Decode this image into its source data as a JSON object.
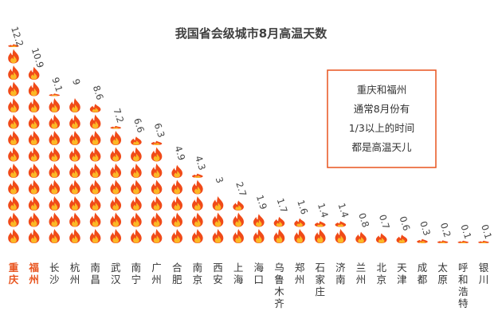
{
  "chart_data": {
    "type": "bar",
    "title": "我国省会级城市8月高温天数",
    "categories": [
      "重庆",
      "福州",
      "长沙",
      "杭州",
      "南昌",
      "武汉",
      "南宁",
      "广州",
      "合肥",
      "南京",
      "西安",
      "上海",
      "海口",
      "乌鲁木齐",
      "郑州",
      "石家庄",
      "济南",
      "兰州",
      "北京",
      "天津",
      "成都",
      "太原",
      "呼和浩特",
      "银川"
    ],
    "values": [
      12.2,
      10.9,
      9.1,
      9,
      8.6,
      7.2,
      6.6,
      6.3,
      4.9,
      4.3,
      3,
      2.7,
      1.9,
      1.7,
      1.6,
      1.4,
      1.4,
      0.8,
      0.7,
      0.6,
      0.3,
      0.2,
      0.1,
      0.1
    ],
    "value_labels": [
      "12.2",
      "10.9",
      "9.1",
      "9",
      "8.6",
      "7.2",
      "6.6",
      "6.3",
      "4.9",
      "4.3",
      "3",
      "2.7",
      "1.9",
      "1.7",
      "1.6",
      "1.4",
      "1.4",
      "0.8",
      "0.7",
      "0.6",
      "0.3",
      "0.2",
      "0.1",
      "0.1"
    ],
    "highlighted": [
      "重庆",
      "福州"
    ],
    "unit_icon": "flame-icon",
    "grid": false,
    "legend": "none",
    "annotation": {
      "lines": [
        "重庆和福州",
        "通常8月份有",
        "1/3以上的时间",
        "都是高温天儿"
      ]
    },
    "colors": {
      "flame_outer": "#f04a18",
      "flame_inner": "#fbb826",
      "highlight": "#e8541e",
      "annotation_border": "#e8541e",
      "text": "#333333"
    }
  }
}
